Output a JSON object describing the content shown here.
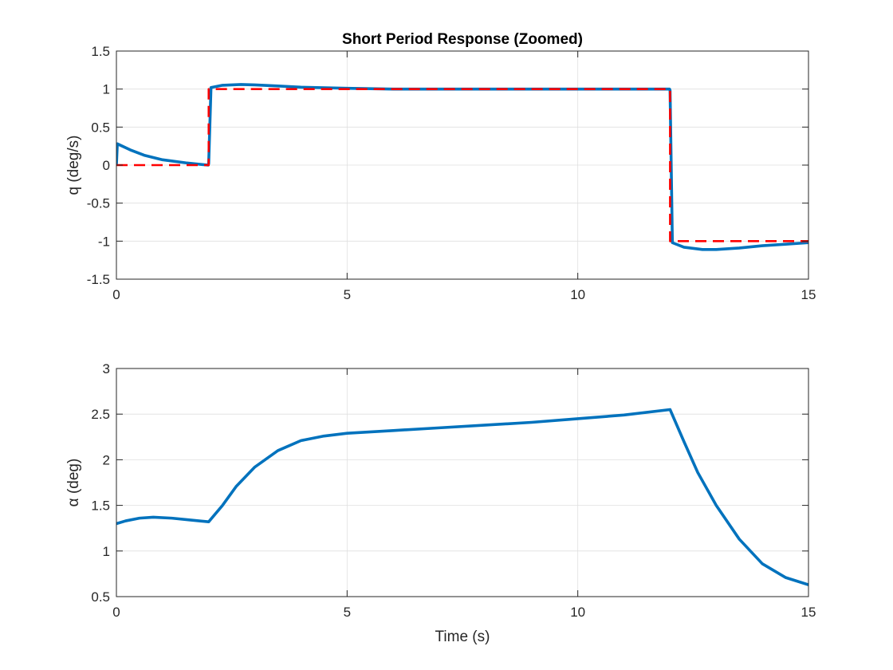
{
  "chart_data": [
    {
      "type": "line",
      "title": "Short Period Response (Zoomed)",
      "xlabel": "",
      "ylabel": "q (deg/s)",
      "xlim": [
        0,
        15
      ],
      "ylim": [
        -1.5,
        1.5
      ],
      "xticks": [
        0,
        5,
        10,
        15
      ],
      "xtick_labels": [
        "0",
        "5",
        "10",
        "15"
      ],
      "yticks": [
        -1.5,
        -1,
        -0.5,
        0,
        0.5,
        1,
        1.5
      ],
      "ytick_labels": [
        "-1.5",
        "-1",
        "-0.5",
        "0",
        "0.5",
        "1",
        "1.5"
      ],
      "grid": true,
      "series": [
        {
          "color": "#0072BD",
          "style": "solid",
          "x": [
            0,
            0.02,
            0.3,
            0.6,
            1.0,
            1.5,
            1.99,
            2.0,
            2.05,
            2.3,
            2.7,
            3.0,
            3.5,
            4.0,
            5.0,
            6.0,
            8.0,
            10.0,
            11.99,
            12.0,
            12.05,
            12.3,
            12.7,
            13.0,
            13.5,
            14.0,
            14.5,
            15.0
          ],
          "y": [
            0,
            0.28,
            0.2,
            0.13,
            0.07,
            0.03,
            0.0,
            0.02,
            1.02,
            1.05,
            1.06,
            1.055,
            1.04,
            1.025,
            1.01,
            1.0,
            1.0,
            1.0,
            1.0,
            0.98,
            -1.02,
            -1.08,
            -1.11,
            -1.11,
            -1.09,
            -1.06,
            -1.04,
            -1.02
          ]
        },
        {
          "color": "#FF0000",
          "style": "dashed",
          "x": [
            0,
            2,
            2,
            12,
            12,
            15
          ],
          "y": [
            0,
            0,
            1,
            1,
            -1,
            -1
          ]
        }
      ]
    },
    {
      "type": "line",
      "title": "",
      "xlabel": "Time (s)",
      "ylabel": "α (deg)",
      "xlim": [
        0,
        15
      ],
      "ylim": [
        0.5,
        3
      ],
      "xticks": [
        0,
        5,
        10,
        15
      ],
      "xtick_labels": [
        "0",
        "5",
        "10",
        "15"
      ],
      "yticks": [
        0.5,
        1,
        1.5,
        2,
        2.5,
        3
      ],
      "ytick_labels": [
        "0.5",
        "1",
        "1.5",
        "2",
        "2.5",
        "3"
      ],
      "grid": true,
      "series": [
        {
          "color": "#0072BD",
          "style": "solid",
          "x": [
            0,
            0.2,
            0.5,
            0.8,
            1.2,
            1.6,
            2.0,
            2.3,
            2.6,
            3.0,
            3.5,
            4.0,
            4.5,
            5.0,
            6.0,
            7.0,
            8.0,
            9.0,
            10.0,
            11.0,
            12.0,
            12.3,
            12.6,
            13.0,
            13.5,
            14.0,
            14.5,
            15.0
          ],
          "y": [
            1.3,
            1.33,
            1.36,
            1.37,
            1.36,
            1.34,
            1.32,
            1.5,
            1.71,
            1.92,
            2.1,
            2.21,
            2.26,
            2.29,
            2.32,
            2.35,
            2.38,
            2.41,
            2.45,
            2.49,
            2.55,
            2.2,
            1.86,
            1.5,
            1.13,
            0.86,
            0.71,
            0.63
          ]
        }
      ]
    }
  ]
}
